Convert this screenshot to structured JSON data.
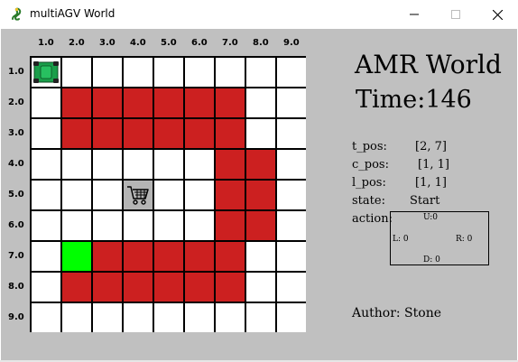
{
  "window": {
    "title": "multiAGV World",
    "app_icon": "pygame-snake-icon",
    "controls": [
      "minimize-icon",
      "maximize-icon",
      "close-icon"
    ]
  },
  "grid": {
    "columns": [
      "1.0",
      "2.0",
      "3.0",
      "4.0",
      "5.0",
      "6.0",
      "7.0",
      "8.0",
      "9.0"
    ],
    "rows": [
      "1.0",
      "2.0",
      "3.0",
      "4.0",
      "5.0",
      "6.0",
      "7.0",
      "8.0",
      "9.0"
    ],
    "layout": [
      "A........",
      ".######..",
      ".######..",
      "......##.",
      "...C..##.",
      "......##.",
      ".G#####..",
      ".######..",
      "........."
    ],
    "legend": {
      "A": "agv-robot",
      "#": "obstacle",
      "G": "goal",
      "C": "shopping-cart-icon",
      ".": "free"
    },
    "colors": {
      "obstacle": "#cc2020",
      "goal": "#00ff00",
      "free": "#ffffff",
      "cart_bg": "#b4b4b4",
      "agv": "#1a9e4a",
      "background": "#c0c0c0"
    }
  },
  "panel": {
    "heading": "AMR World",
    "time": "Time:146",
    "t_pos_label": "t_pos:",
    "t_pos_value": "[2, 7]",
    "c_pos_label": "c_pos:",
    "c_pos_value": "[1, 1]",
    "l_pos_label": "l_pos:",
    "l_pos_value": "[1, 1]",
    "state_label": "state:",
    "state_value": "Start",
    "action_label": "action:",
    "action_up": "U:0",
    "action_left": "L: 0",
    "action_right": "R: 0",
    "action_down": "D: 0",
    "author": "Author: Stone"
  }
}
